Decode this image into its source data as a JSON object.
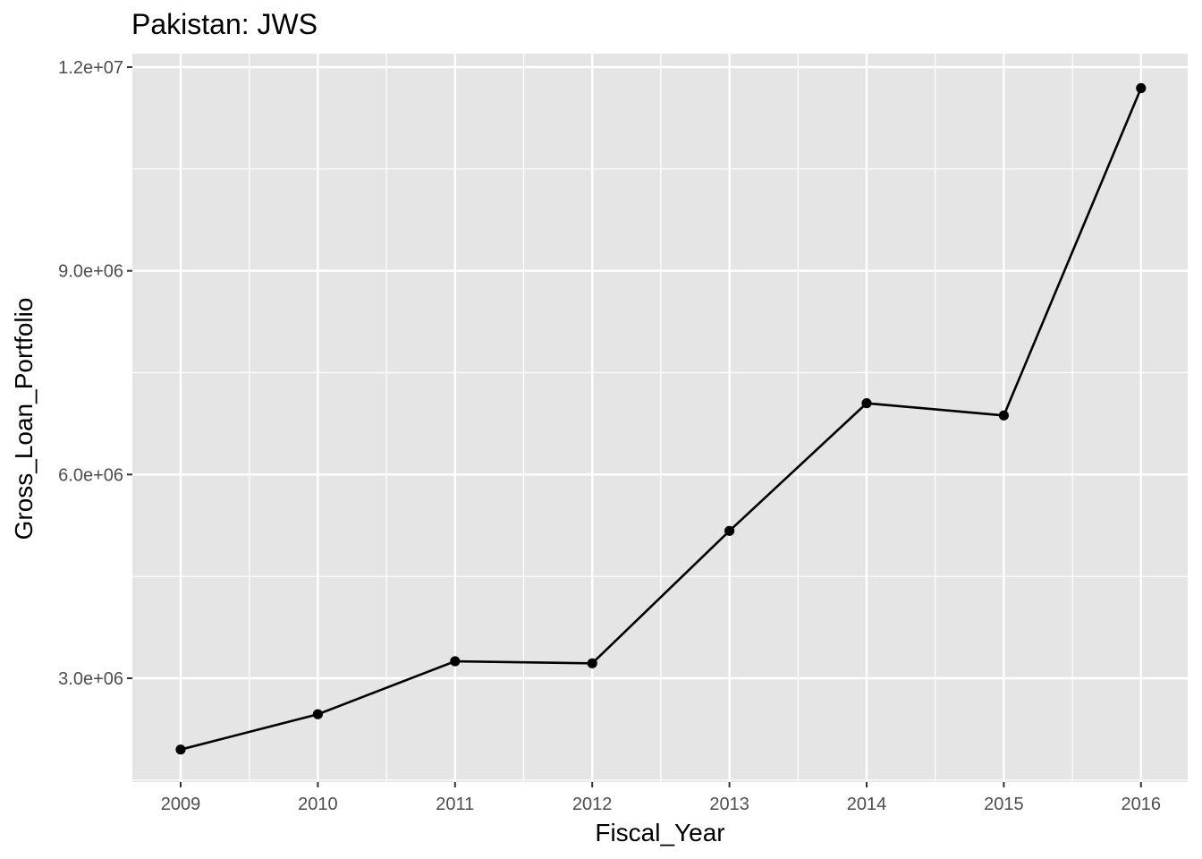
{
  "chart_data": {
    "type": "line",
    "title": "Pakistan:  JWS",
    "xlabel": "Fiscal_Year",
    "ylabel": "Gross_Loan_Portfolio",
    "x": [
      2009,
      2010,
      2011,
      2012,
      2013,
      2014,
      2015,
      2016
    ],
    "y_ticks": [
      3000000,
      6000000,
      9000000,
      12000000
    ],
    "y_tick_labels": [
      "3.0e+06",
      "6.0e+06",
      "9.0e+06",
      "1.2e+07"
    ],
    "series": [
      {
        "values": [
          1950000,
          2470000,
          3250000,
          3220000,
          5170000,
          7050000,
          6870000,
          11690000
        ]
      }
    ],
    "xlim": [
      2008.65,
      2016.35
    ],
    "ylim": [
      1480000,
      12000000
    ],
    "grid": true,
    "panel_background": "#e5e5e5",
    "grid_color": "#ffffff",
    "line_color": "#000000",
    "point_color": "#000000",
    "tick_label_color": "#4d4d4d"
  }
}
